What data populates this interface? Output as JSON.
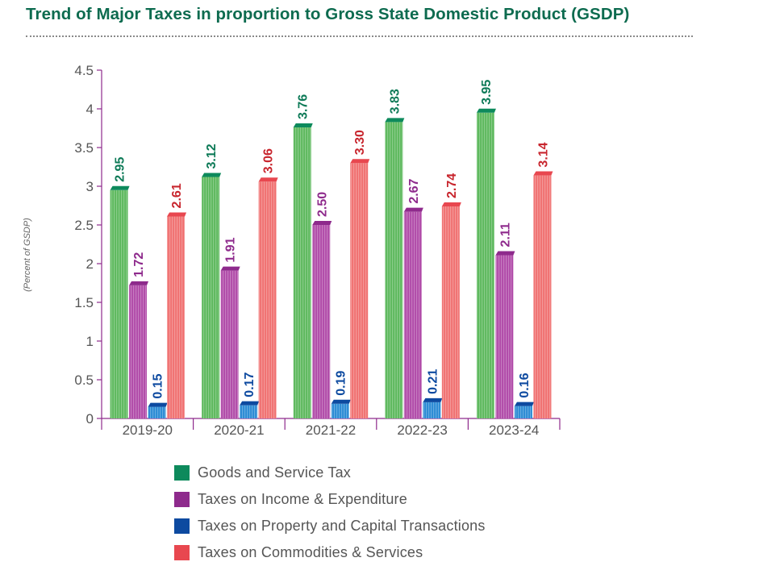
{
  "chart_data": {
    "type": "bar",
    "title": "Trend of Major Taxes in proportion to Gross State Domestic Product (GSDP)",
    "ylabel": "(Percent of GSDP)",
    "xlabel": "",
    "ylim": [
      0,
      4.5
    ],
    "yticks": [
      "0",
      "0.5",
      "1",
      "1.5",
      "2",
      "2.5",
      "3",
      "3.5",
      "4",
      "4.5"
    ],
    "categories": [
      "2019-20",
      "2020-21",
      "2021-22",
      "2022-23",
      "2023-24"
    ],
    "series": [
      {
        "name": "Goods and Service Tax",
        "color": "#0d8a5c",
        "shade": "#5cb85c",
        "values": [
          2.95,
          3.12,
          3.76,
          3.83,
          3.95
        ],
        "labels": [
          "2.95",
          "3.12",
          "3.76",
          "3.83",
          "3.95"
        ]
      },
      {
        "name": "Taxes on Income & Expenditure",
        "color": "#8e2a8c",
        "shade": "#b04aa8",
        "values": [
          1.72,
          1.91,
          2.5,
          2.67,
          2.11
        ],
        "labels": [
          "1.72",
          "1.91",
          "2.50",
          "2.67",
          "2.11"
        ]
      },
      {
        "name": "Taxes on Property and Capital Transactions",
        "color": "#0d4aa0",
        "shade": "#2a8ad4",
        "values": [
          0.15,
          0.17,
          0.19,
          0.21,
          0.16
        ],
        "labels": [
          "0.15",
          "0.17",
          "0.19",
          "0.21",
          "0.16"
        ]
      },
      {
        "name": "Taxes on Commodities & Services",
        "color": "#e8474f",
        "shade": "#f07070",
        "values": [
          2.61,
          3.06,
          3.3,
          2.74,
          3.14
        ],
        "labels": [
          "2.61",
          "3.06",
          "3.30",
          "2.74",
          "3.14"
        ]
      }
    ],
    "label_colors": [
      "#0d7a57",
      "#8e2a8c",
      "#0d4aa0",
      "#c8262e"
    ],
    "axis_color": "#8e2a8c",
    "legend_position": "bottom"
  }
}
